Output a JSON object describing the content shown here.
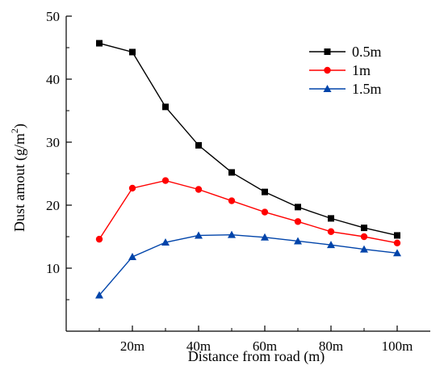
{
  "chart_data": {
    "type": "line",
    "xlabel": "Distance from road (m)",
    "ylabel_main": "Dust amout (g/m",
    "ylabel_sup": "2",
    "ylabel_close": ")",
    "x": [
      10,
      20,
      30,
      40,
      50,
      60,
      70,
      80,
      90,
      100
    ],
    "x_ticks": [
      {
        "value": 20,
        "label": "20m"
      },
      {
        "value": 40,
        "label": "40m"
      },
      {
        "value": 60,
        "label": "60m"
      },
      {
        "value": 80,
        "label": "80m"
      },
      {
        "value": 100,
        "label": "100m"
      }
    ],
    "xlim": [
      0,
      110
    ],
    "y_ticks": [
      {
        "value": 10,
        "label": "10"
      },
      {
        "value": 20,
        "label": "20"
      },
      {
        "value": 30,
        "label": "30"
      },
      {
        "value": 40,
        "label": "40"
      },
      {
        "value": 50,
        "label": "50"
      }
    ],
    "ylim": [
      0,
      50
    ],
    "legend_position": "top-right",
    "grid": false,
    "series": [
      {
        "name": "0.5m",
        "color": "#000000",
        "marker": "square",
        "values": [
          45.7,
          44.3,
          35.6,
          29.5,
          25.2,
          22.1,
          19.7,
          17.9,
          16.4,
          15.2
        ]
      },
      {
        "name": "1m",
        "color": "#ff0000",
        "marker": "circle",
        "values": [
          14.6,
          22.7,
          23.9,
          22.5,
          20.7,
          18.9,
          17.4,
          15.8,
          15.0,
          14.0
        ]
      },
      {
        "name": "1.5m",
        "color": "#0044aa",
        "marker": "triangle",
        "values": [
          5.7,
          11.8,
          14.1,
          15.2,
          15.3,
          14.9,
          14.3,
          13.7,
          13.0,
          12.4
        ]
      }
    ]
  }
}
